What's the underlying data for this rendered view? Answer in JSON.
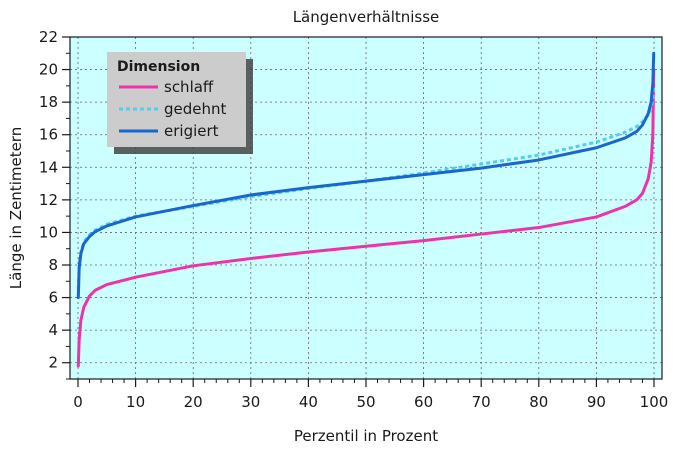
{
  "chart_data": {
    "type": "line",
    "title": "Längenverhältnisse",
    "xlabel": "Perzentil in Prozent",
    "ylabel": "Länge in Zentimetern",
    "xlim": [
      0,
      100
    ],
    "ylim": [
      1,
      22
    ],
    "xticks": [
      0,
      10,
      20,
      30,
      40,
      50,
      60,
      70,
      80,
      90,
      100
    ],
    "yticks": [
      2,
      4,
      6,
      8,
      10,
      12,
      14,
      16,
      18,
      20,
      22
    ],
    "grid": true,
    "background_color": "#ccffff",
    "legend": {
      "title": "Dimension",
      "placement": "top-left"
    },
    "series": [
      {
        "name": "schlaff",
        "color": "#ee33aa",
        "style": "solid",
        "x": [
          0.05,
          0.2,
          0.5,
          1,
          2,
          3,
          5,
          10,
          20,
          30,
          40,
          50,
          60,
          70,
          80,
          90,
          95,
          97,
          98,
          99,
          99.5,
          99.8,
          99.95
        ],
        "y": [
          1.8,
          3.4,
          4.6,
          5.4,
          6.1,
          6.45,
          6.8,
          7.25,
          7.95,
          8.4,
          8.8,
          9.15,
          9.5,
          9.9,
          10.3,
          10.95,
          11.6,
          12.0,
          12.4,
          13.3,
          14.3,
          16.0,
          20.0
        ]
      },
      {
        "name": "gedehnt",
        "color": "#55ccee",
        "style": "dashed",
        "x": [
          0.05,
          0.2,
          0.5,
          1,
          2,
          3,
          5,
          10,
          20,
          30,
          40,
          50,
          60,
          70,
          80,
          90,
          95,
          97,
          98,
          99,
          99.5,
          99.8,
          99.95
        ],
        "y": [
          6.5,
          8.0,
          8.8,
          9.4,
          9.85,
          10.15,
          10.5,
          11.0,
          11.6,
          12.2,
          12.7,
          13.15,
          13.65,
          14.2,
          14.75,
          15.55,
          16.15,
          16.5,
          16.8,
          17.2,
          17.6,
          18.2,
          19.0
        ]
      },
      {
        "name": "erigiert",
        "color": "#1a66cc",
        "style": "solid",
        "x": [
          0.05,
          0.2,
          0.5,
          1,
          2,
          3,
          5,
          10,
          20,
          30,
          40,
          50,
          60,
          70,
          80,
          90,
          95,
          97,
          98,
          99,
          99.5,
          99.8,
          99.95
        ],
        "y": [
          6.0,
          7.8,
          8.7,
          9.3,
          9.75,
          10.05,
          10.4,
          10.95,
          11.65,
          12.3,
          12.75,
          13.15,
          13.55,
          13.95,
          14.45,
          15.2,
          15.8,
          16.2,
          16.6,
          17.3,
          18.0,
          19.2,
          21.0
        ]
      }
    ]
  }
}
